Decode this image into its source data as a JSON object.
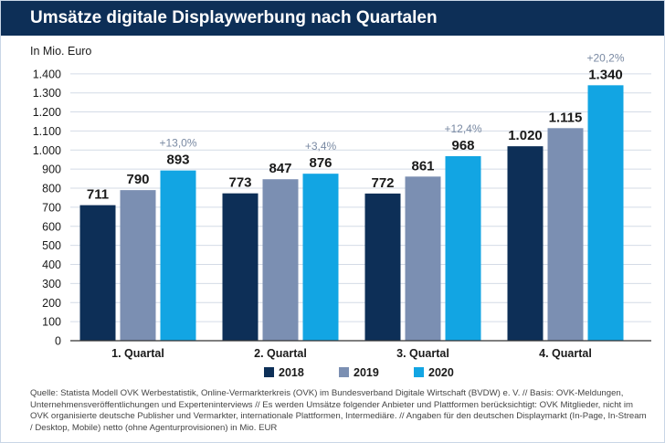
{
  "header": {
    "title": "Umsätze digitale Displaywerbung nach Quartalen"
  },
  "source": {
    "text": "Quelle: Statista Modell OVK Werbestatistik, Online-Vermarkterkreis (OVK) im Bundesverband Digitale Wirtschaft (BVDW) e. V. // Basis: OVK-Meldungen, Unternehmensveröffentlichungen und Experteninterviews // Es werden Umsätze folgender Anbieter und Plattformen berücksichtigt: OVK Mitglieder, nicht im OVK organisierte deutsche Publisher und Vermarkter, internationale Plattformen, Intermediäre. // Angaben für den deutschen Displaymarkt (In-Page, In-Stream / Desktop, Mobile) netto (ohne Agenturprovisionen) in Mio. EUR"
  },
  "chart_data": {
    "type": "bar",
    "title": "Umsätze digitale Displaywerbung nach Quartalen",
    "ylabel": "In Mio. Euro",
    "xlabel": "",
    "ylim": [
      0,
      1400
    ],
    "yticks": [
      0,
      100,
      200,
      300,
      400,
      500,
      600,
      700,
      800,
      900,
      1000,
      1100,
      1200,
      1300,
      1400
    ],
    "ytick_labels": [
      "0",
      "100",
      "200",
      "300",
      "400",
      "500",
      "600",
      "700",
      "800",
      "900",
      "1.000",
      "1.100",
      "1.200",
      "1.300",
      "1.400"
    ],
    "grid": true,
    "legend_position": "bottom",
    "categories": [
      "1. Quartal",
      "2. Quartal",
      "3. Quartal",
      "4. Quartal"
    ],
    "series": [
      {
        "name": "2018",
        "color": "#0d2f57",
        "values": [
          711,
          773,
          772,
          1020
        ],
        "value_labels": [
          "711",
          "773",
          "772",
          "1.020"
        ]
      },
      {
        "name": "2019",
        "color": "#7b8fb2",
        "values": [
          790,
          847,
          861,
          1115
        ],
        "value_labels": [
          "790",
          "847",
          "861",
          "1.115"
        ]
      },
      {
        "name": "2020",
        "color": "#12a5e3",
        "values": [
          893,
          876,
          968,
          1340
        ],
        "value_labels": [
          "893",
          "876",
          "968",
          "1.340"
        ]
      }
    ],
    "annotations": [
      "+13,0%",
      "+3,4%",
      "+12,4%",
      "+20,2%"
    ]
  }
}
